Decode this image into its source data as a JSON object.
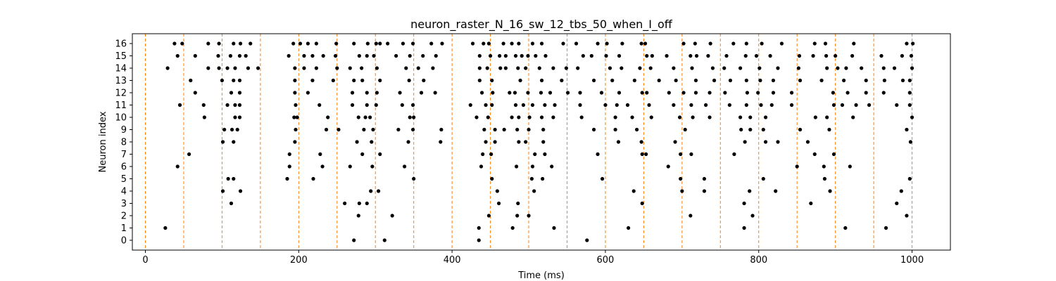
{
  "chart_data": {
    "type": "scatter",
    "title": "neuron_raster_N_16_sw_12_tbs_50_when_I_off",
    "xlabel": "Time (ms)",
    "ylabel": "Neuron index",
    "xlim": [
      -17,
      1050
    ],
    "ylim": [
      -0.8,
      16.8
    ],
    "x_ticks": [
      0,
      200,
      400,
      600,
      800,
      1000
    ],
    "y_ticks": [
      0,
      1,
      2,
      3,
      4,
      5,
      6,
      7,
      8,
      9,
      10,
      11,
      12,
      13,
      14,
      15,
      16
    ],
    "grid": false,
    "marker_color": "#000000",
    "vline_color": "#ff7f0e",
    "vlines": [
      0,
      50,
      100,
      150,
      200,
      250,
      300,
      350,
      400,
      450,
      500,
      550,
      600,
      650,
      700,
      750,
      800,
      850,
      900,
      950,
      1000
    ],
    "spikes": [
      {
        "neuron": 0,
        "times": [
          272,
          312,
          435,
          576
        ]
      },
      {
        "neuron": 1,
        "times": [
          26,
          435,
          479,
          533,
          630,
          781,
          913,
          966
        ]
      },
      {
        "neuron": 2,
        "times": [
          278,
          322,
          448,
          485,
          500,
          711,
          792,
          993
        ]
      },
      {
        "neuron": 3,
        "times": [
          112,
          260,
          279,
          289,
          461,
          486,
          648,
          781,
          868,
          980
        ]
      },
      {
        "neuron": 4,
        "times": [
          101,
          124,
          294,
          304,
          459,
          507,
          637,
          700,
          729,
          788,
          822,
          893,
          986
        ]
      },
      {
        "neuron": 5,
        "times": [
          108,
          115,
          185,
          219,
          350,
          452,
          504,
          518,
          596,
          698,
          729,
          806,
          886,
          997
        ]
      },
      {
        "neuron": 6,
        "times": [
          42,
          188,
          231,
          267,
          296,
          338,
          438,
          484,
          505,
          530,
          682,
          850,
          885,
          919
        ]
      },
      {
        "neuron": 7,
        "times": [
          57,
          188,
          228,
          283,
          306,
          440,
          451,
          508,
          521,
          590,
          648,
          653,
          698,
          712,
          768,
          873,
          898
        ]
      },
      {
        "neuron": 8,
        "times": [
          101,
          115,
          195,
          276,
          295,
          343,
          385,
          444,
          456,
          487,
          496,
          519,
          617,
          647,
          691,
          782,
          809,
          825,
          864,
          998
        ]
      },
      {
        "neuron": 9,
        "times": [
          103,
          113,
          120,
          196,
          236,
          252,
          285,
          297,
          330,
          349,
          386,
          442,
          456,
          468,
          485,
          500,
          519,
          585,
          613,
          641,
          704,
          777,
          789,
          806,
          854,
          892,
          993
        ]
      },
      {
        "neuron": 10,
        "times": [
          77,
          117,
          123,
          194,
          198,
          238,
          278,
          287,
          293,
          345,
          350,
          432,
          447,
          478,
          487,
          501,
          517,
          532,
          569,
          613,
          635,
          660,
          697,
          714,
          736,
          776,
          789,
          809,
          874,
          889,
          923,
          1000
        ]
      },
      {
        "neuron": 11,
        "times": [
          45,
          76,
          107,
          117,
          123,
          196,
          227,
          270,
          289,
          301,
          335,
          349,
          424,
          444,
          452,
          483,
          493,
          505,
          521,
          534,
          567,
          600,
          615,
          629,
          657,
          689,
          712,
          731,
          762,
          784,
          803,
          817,
          843,
          898,
          909,
          927,
          944,
          980,
          997
        ]
      },
      {
        "neuron": 12,
        "times": [
          65,
          112,
          123,
          195,
          212,
          270,
          289,
          302,
          332,
          360,
          378,
          439,
          453,
          475,
          482,
          499,
          516,
          528,
          551,
          567,
          595,
          618,
          648,
          654,
          683,
          702,
          718,
          736,
          756,
          785,
          799,
          819,
          843,
          897,
          916,
          940,
          963,
          997
        ]
      },
      {
        "neuron": 13,
        "times": [
          59,
          100,
          115,
          123,
          195,
          218,
          245,
          272,
          283,
          306,
          344,
          363,
          436,
          452,
          489,
          517,
          543,
          585,
          609,
          638,
          670,
          692,
          718,
          742,
          763,
          784,
          802,
          819,
          854,
          882,
          911,
          940,
          964,
          988,
          997
        ]
      },
      {
        "neuron": 14,
        "times": [
          29,
          82,
          96,
          107,
          117,
          134,
          147,
          195,
          207,
          223,
          250,
          267,
          282,
          302,
          340,
          356,
          375,
          436,
          446,
          463,
          470,
          486,
          496,
          514,
          532,
          549,
          564,
          606,
          621,
          645,
          659,
          689,
          713,
          740,
          755,
          776,
          801,
          825,
          852,
          889,
          903,
          914,
          934,
          963,
          977,
          1000
        ]
      },
      {
        "neuron": 15,
        "times": [
          42,
          65,
          95,
          111,
          123,
          131,
          187,
          207,
          218,
          232,
          248,
          279,
          289,
          298,
          327,
          345,
          362,
          379,
          436,
          450,
          462,
          470,
          483,
          491,
          499,
          509,
          522,
          571,
          582,
          601,
          618,
          654,
          661,
          680,
          711,
          719,
          734,
          758,
          783,
          797,
          815,
          853,
          871,
          888,
          900,
          922,
          960,
          987,
          999
        ]
      },
      {
        "neuron": 16,
        "times": [
          38,
          48,
          82,
          96,
          115,
          124,
          137,
          193,
          202,
          212,
          223,
          249,
          272,
          290,
          301,
          306,
          316,
          336,
          349,
          373,
          387,
          427,
          441,
          448,
          467,
          478,
          487,
          505,
          517,
          545,
          562,
          590,
          602,
          622,
          647,
          652,
          702,
          717,
          737,
          767,
          784,
          804,
          830,
          873,
          887,
          924,
          993,
          1001
        ]
      }
    ]
  }
}
